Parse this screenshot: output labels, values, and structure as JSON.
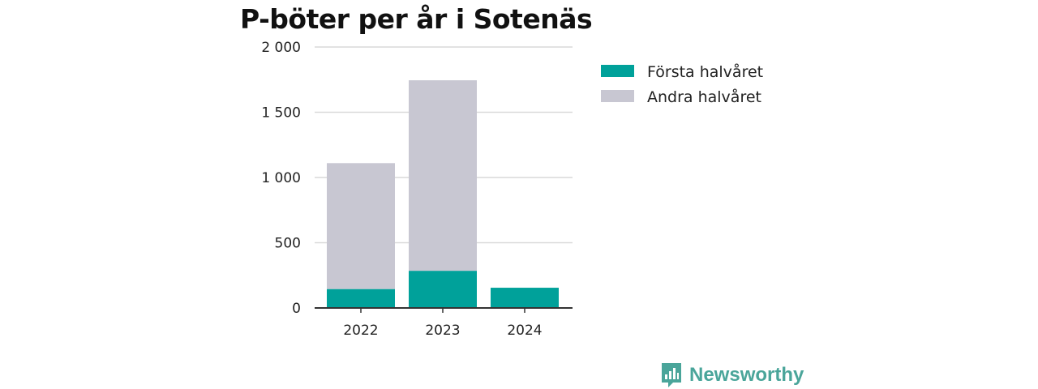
{
  "chart_data": {
    "type": "bar",
    "stacked": true,
    "title": "P-böter per år i Sotenäs",
    "xlabel": "",
    "ylabel": "",
    "categories": [
      "2022",
      "2023",
      "2024"
    ],
    "series": [
      {
        "name": "Första halvåret",
        "color": "#00a19a",
        "values": [
          145,
          285,
          155
        ]
      },
      {
        "name": "Andra halvåret",
        "color": "#c8c7d2",
        "values": [
          965,
          1460,
          0
        ]
      }
    ],
    "ylim": [
      0,
      2000
    ],
    "yticks": [
      0,
      500,
      1000,
      1500,
      2000
    ],
    "ytick_labels": [
      "0",
      "500",
      "1 000",
      "1 500",
      "2 000"
    ],
    "grid": true,
    "legend_position": "right"
  },
  "brand": {
    "name": "Newsworthy",
    "icon": "bar-chart-logo-icon",
    "color": "#4aa59a"
  }
}
